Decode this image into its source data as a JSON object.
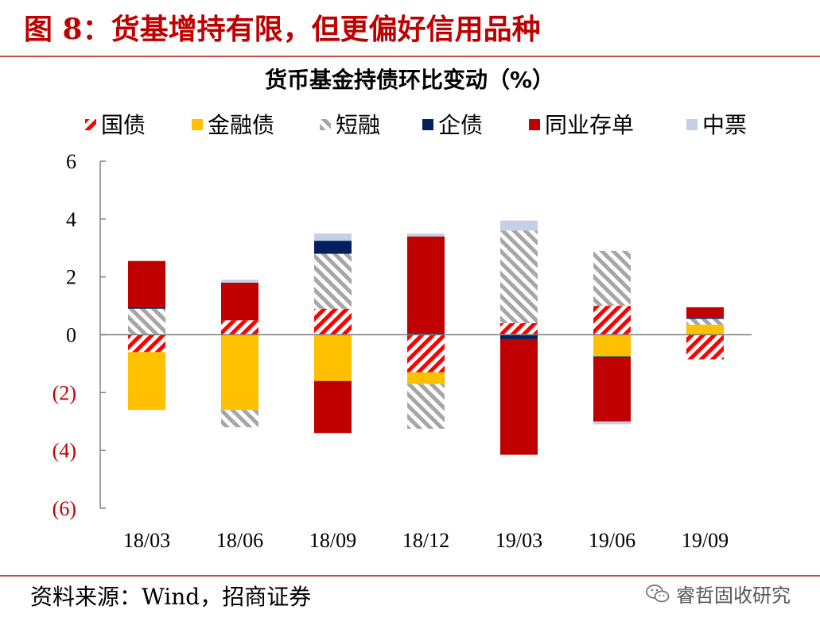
{
  "figure": {
    "title": "图 8：货基增持有限，但更偏好信用品种",
    "source": "资料来源：Wind，招商证券",
    "watermark": "睿哲固收研究"
  },
  "chart_data": {
    "type": "bar",
    "stacked": true,
    "title": "货币基金持债环比变动（%）",
    "xlabel": "",
    "ylabel": "",
    "ylim": [
      -6,
      6
    ],
    "yticks": [
      6,
      4,
      2,
      0,
      -2,
      -4,
      -6
    ],
    "ytick_labels": [
      "6",
      "4",
      "2",
      "0",
      "(2)",
      "(4)",
      "(6)"
    ],
    "negative_tick_color": "#c00000",
    "categories": [
      "18/03",
      "18/06",
      "18/09",
      "18/12",
      "19/03",
      "19/06",
      "19/09"
    ],
    "legend_position": "top",
    "series": [
      {
        "name": "国债",
        "color": "#ff0000",
        "pattern": "stripes-red",
        "values": [
          -0.6,
          0.5,
          0.9,
          -1.3,
          0.4,
          1.0,
          -0.85
        ]
      },
      {
        "name": "金融债",
        "color": "#ffc000",
        "pattern": "solid",
        "values": [
          -2.0,
          -2.6,
          -1.6,
          -0.4,
          0.0,
          -0.75,
          0.35
        ]
      },
      {
        "name": "短融",
        "color": "#a6a6a6",
        "pattern": "stripes-gray",
        "values": [
          0.9,
          -0.6,
          1.9,
          -1.55,
          3.2,
          1.9,
          0.2
        ]
      },
      {
        "name": "企债",
        "color": "#002060",
        "pattern": "solid",
        "values": [
          0.05,
          0.0,
          0.45,
          0.05,
          -0.15,
          -0.05,
          0.05
        ]
      },
      {
        "name": "同业存单",
        "color": "#c00000",
        "pattern": "solid",
        "values": [
          1.6,
          1.3,
          -1.8,
          3.35,
          -4.0,
          -2.2,
          0.35
        ]
      },
      {
        "name": "中票",
        "color": "#c5d0e6",
        "pattern": "solid",
        "values": [
          0.0,
          0.1,
          0.25,
          0.1,
          0.35,
          -0.1,
          0.0
        ]
      }
    ]
  }
}
